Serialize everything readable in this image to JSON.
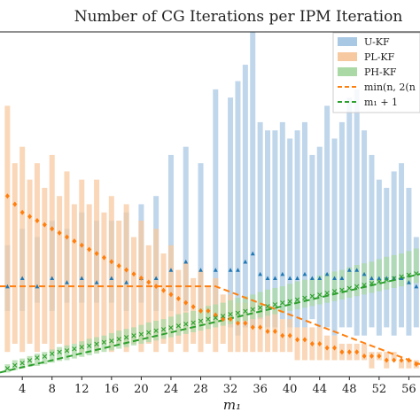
{
  "chart_data": {
    "type": "bar",
    "title": "Number of CG Iterations per IPM Iteration",
    "xlabel": "m₁",
    "ylabel": "",
    "x_ticks": [
      "4",
      "8",
      "12",
      "16",
      "20",
      "24",
      "28",
      "32",
      "36",
      "40",
      "44",
      "48",
      "52",
      "56"
    ],
    "xlim": [
      1,
      57.5
    ],
    "ylim": [
      0,
      42
    ],
    "grid": false,
    "legend_position": "top-right",
    "legend": [
      {
        "label": "U-KF",
        "kind": "patch",
        "color": "#a9c8e4"
      },
      {
        "label": "PL-KF",
        "kind": "patch",
        "color": "#f7c9a0"
      },
      {
        "label": "PH-KF",
        "kind": "patch",
        "color": "#abd9a5"
      },
      {
        "label": "min(n, 2(n",
        "kind": "dashed",
        "color": "#ff7f0e"
      },
      {
        "label": "m₁ + 1",
        "kind": "dashed",
        "color": "#2ca02c"
      }
    ],
    "series": [
      {
        "name": "U-KF",
        "color": "#a9c8e4",
        "marker_color": "#1f77b4",
        "x": [
          2,
          4,
          6,
          8,
          10,
          12,
          14,
          16,
          18,
          20,
          22,
          24,
          26,
          28,
          30,
          32,
          33,
          34,
          35,
          36,
          37,
          38,
          39,
          40,
          41,
          42,
          43,
          44,
          45,
          46,
          47,
          48,
          49,
          50,
          51,
          52,
          53,
          54,
          55,
          56,
          57
        ],
        "low": [
          8,
          8,
          9,
          8,
          9,
          9,
          9,
          9,
          8,
          9,
          8,
          8,
          8,
          8,
          7,
          6,
          5,
          6,
          6,
          7,
          6,
          6,
          7,
          6,
          6,
          6,
          7,
          6,
          6,
          5,
          6,
          6,
          5,
          5,
          6,
          5,
          6,
          5,
          6,
          5,
          6
        ],
        "high": [
          16,
          18,
          17,
          19,
          18,
          20,
          19,
          19,
          20,
          21,
          22,
          27,
          28,
          26,
          35,
          34,
          36,
          38,
          42,
          31,
          30,
          30,
          31,
          29,
          30,
          31,
          27,
          28,
          33,
          29,
          31,
          34,
          35,
          30,
          27,
          24,
          23,
          25,
          26,
          23,
          17
        ],
        "marker": [
          11,
          12,
          11,
          12,
          11.5,
          12,
          11.5,
          12,
          11.5,
          12,
          12,
          13,
          14,
          13,
          13,
          13,
          13,
          14,
          15,
          12.5,
          12,
          12,
          12.5,
          12,
          12,
          12.5,
          12,
          12,
          12.5,
          12,
          12,
          13,
          13,
          12.5,
          12,
          12,
          12,
          12,
          12,
          11.5,
          11
        ]
      },
      {
        "name": "PL-KF",
        "color": "#f7c9a0",
        "marker_color": "#ff7f0e",
        "x": [
          2,
          3,
          4,
          5,
          6,
          7,
          8,
          9,
          10,
          11,
          12,
          13,
          14,
          15,
          16,
          17,
          18,
          19,
          20,
          21,
          22,
          23,
          24,
          25,
          26,
          27,
          28,
          29,
          30,
          31,
          32,
          33,
          34,
          35,
          36,
          37,
          38,
          39,
          40,
          41,
          42,
          43,
          44,
          45,
          46,
          47,
          48,
          49,
          50,
          51,
          52,
          53,
          54,
          55,
          56,
          57
        ],
        "low": [
          3,
          4,
          3,
          4,
          3,
          4,
          3,
          4,
          3,
          4,
          3,
          4,
          3,
          4,
          3,
          4,
          3,
          4,
          3,
          4,
          3,
          4,
          3,
          4,
          3,
          4,
          3,
          4,
          3,
          4,
          3,
          3,
          3,
          3,
          3,
          3,
          3,
          3,
          3,
          2,
          2,
          2,
          2,
          2,
          2,
          2,
          2,
          2,
          2,
          1,
          2,
          1,
          2,
          1,
          1,
          1
        ],
        "high": [
          33,
          26,
          28,
          24,
          26,
          23,
          27,
          22,
          25,
          21,
          24,
          21,
          24,
          20,
          22,
          19,
          21,
          17,
          19,
          16,
          18,
          15,
          16,
          13,
          14,
          12,
          13,
          11,
          12,
          10,
          10,
          9,
          9,
          9,
          9,
          8,
          8,
          7,
          7,
          6,
          6,
          6,
          6,
          5,
          5,
          4,
          4,
          4,
          4,
          3,
          3,
          3,
          3,
          2,
          2,
          2
        ],
        "marker": [
          22,
          21,
          20,
          19.5,
          19,
          18.5,
          18,
          17.5,
          17,
          16.5,
          16,
          15.5,
          15,
          14.5,
          14,
          13.5,
          13,
          12.5,
          12,
          11.5,
          11,
          10.5,
          10,
          9.5,
          9,
          8.5,
          8,
          8,
          7.5,
          7,
          7,
          6.5,
          6.5,
          6,
          6,
          5.5,
          5.5,
          5,
          5,
          4.5,
          4.5,
          4,
          4,
          3.5,
          3.5,
          3,
          3,
          3,
          2.5,
          2.5,
          2.5,
          2,
          2,
          2,
          2,
          1.5
        ]
      },
      {
        "name": "PH-KF",
        "color": "#abd9a5",
        "marker_color": "#2ca02c",
        "x": [
          2,
          3,
          4,
          5,
          6,
          7,
          8,
          9,
          10,
          11,
          12,
          13,
          14,
          15,
          16,
          17,
          18,
          19,
          20,
          21,
          22,
          23,
          24,
          25,
          26,
          27,
          28,
          29,
          30,
          31,
          32,
          33,
          34,
          35,
          36,
          37,
          38,
          39,
          40,
          41,
          42,
          43,
          44,
          45,
          46,
          47,
          48,
          49,
          50,
          51,
          52,
          53,
          54,
          55,
          56,
          57
        ],
        "low": [
          0.5,
          0.8,
          1,
          1.2,
          1.3,
          1.5,
          1.7,
          1.9,
          2,
          2.2,
          2.4,
          2.6,
          2.8,
          3,
          3.2,
          3.4,
          3.6,
          3.8,
          4,
          4.2,
          4.4,
          4.6,
          4.8,
          5,
          5.2,
          5.4,
          5.6,
          5.8,
          6,
          6.2,
          6.4,
          6.6,
          6.8,
          7,
          7.2,
          7.4,
          7.6,
          7.8,
          8,
          8.2,
          8.4,
          8.6,
          8.8,
          9,
          9.2,
          9.4,
          9.6,
          9.8,
          10,
          10.2,
          10.4,
          10.6,
          10.8,
          11,
          11.2,
          11.4
        ],
        "high": [
          1.5,
          2,
          2.2,
          2.5,
          2.8,
          3,
          3.3,
          3.6,
          3.8,
          4,
          4.3,
          4.6,
          4.8,
          5,
          5.3,
          5.6,
          5.8,
          6,
          6.3,
          6.6,
          6.8,
          7,
          7.3,
          7.6,
          7.8,
          8,
          8.3,
          8.6,
          8.8,
          9,
          9.3,
          9.6,
          9.8,
          10,
          10.3,
          10.6,
          10.8,
          11,
          11.3,
          11.6,
          11.8,
          12,
          12.3,
          12.6,
          12.8,
          13,
          13.3,
          13.6,
          13.8,
          14,
          14.3,
          14.6,
          14.8,
          15,
          15.3,
          15.6
        ],
        "marker": [
          1,
          1.4,
          1.7,
          2,
          2.3,
          2.5,
          2.8,
          3,
          3.2,
          3.4,
          3.6,
          3.8,
          4,
          4.2,
          4.4,
          4.6,
          4.8,
          5,
          5.2,
          5.4,
          5.6,
          5.8,
          6,
          6.2,
          6.4,
          6.6,
          6.8,
          7,
          7.2,
          7.4,
          7.6,
          7.8,
          8,
          8.2,
          8.4,
          8.6,
          8.8,
          9,
          9.2,
          9.4,
          9.6,
          9.8,
          10,
          10.2,
          10.4,
          10.6,
          10.8,
          11,
          11.2,
          11.4,
          11.6,
          11.8,
          12,
          12.2,
          12.4,
          12.6
        ]
      }
    ],
    "reference_lines": [
      {
        "name": "min(n, 2(n",
        "color": "#ff7f0e",
        "x": [
          1,
          30,
          57.5
        ],
        "y": [
          11,
          11,
          1.5
        ]
      },
      {
        "name": "m₁ + 1",
        "color": "#2ca02c",
        "x": [
          1,
          57.5
        ],
        "y": [
          0.5,
          12.5
        ]
      }
    ]
  }
}
